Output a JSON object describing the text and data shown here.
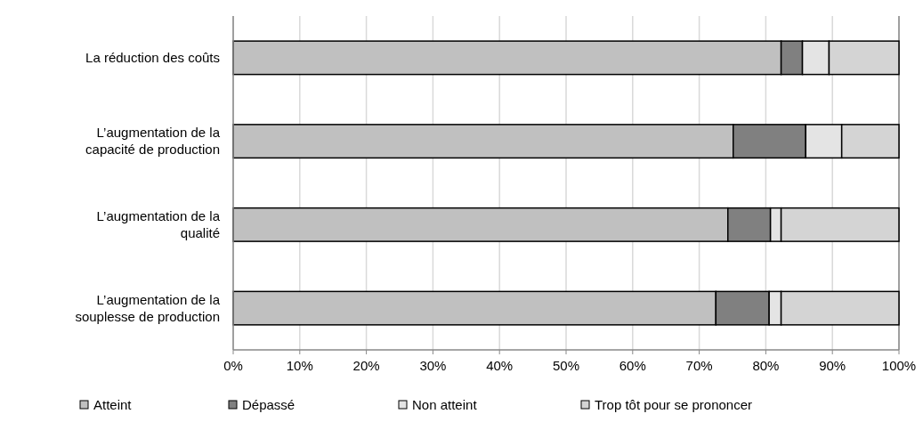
{
  "chart_data": {
    "type": "bar",
    "orientation": "horizontal",
    "stacked": true,
    "categories": [
      "La réduction des coûts",
      "L’augmentation de la capacité de production",
      "L’augmentation de la qualité",
      "L’augmentation de la souplesse de production"
    ],
    "series": [
      {
        "name": "Atteint",
        "color": "#c0c0c0",
        "values": [
          82.3,
          75.1,
          74.3,
          72.5
        ]
      },
      {
        "name": "Dépassé",
        "color": "#808080",
        "values": [
          3.2,
          10.9,
          6.4,
          8.0
        ]
      },
      {
        "name": "Non atteint",
        "color": "#e4e4e4",
        "values": [
          4.0,
          5.4,
          1.6,
          1.8
        ]
      },
      {
        "name": "Trop tôt pour se prononcer",
        "color": "#d4d4d4",
        "values": [
          10.5,
          8.6,
          17.7,
          17.7
        ]
      }
    ],
    "xlim": [
      0,
      100
    ],
    "xticks": [
      {
        "value": 0,
        "label": "0%"
      },
      {
        "value": 10,
        "label": "10%"
      },
      {
        "value": 20,
        "label": "20%"
      },
      {
        "value": 30,
        "label": "30%"
      },
      {
        "value": 40,
        "label": "40%"
      },
      {
        "value": 50,
        "label": "50%"
      },
      {
        "value": 60,
        "label": "60%"
      },
      {
        "value": 70,
        "label": "70%"
      },
      {
        "value": 80,
        "label": "80%"
      },
      {
        "value": 90,
        "label": "90%"
      },
      {
        "value": 100,
        "label": "100%"
      }
    ],
    "grid": "x",
    "legend": "bottom"
  }
}
